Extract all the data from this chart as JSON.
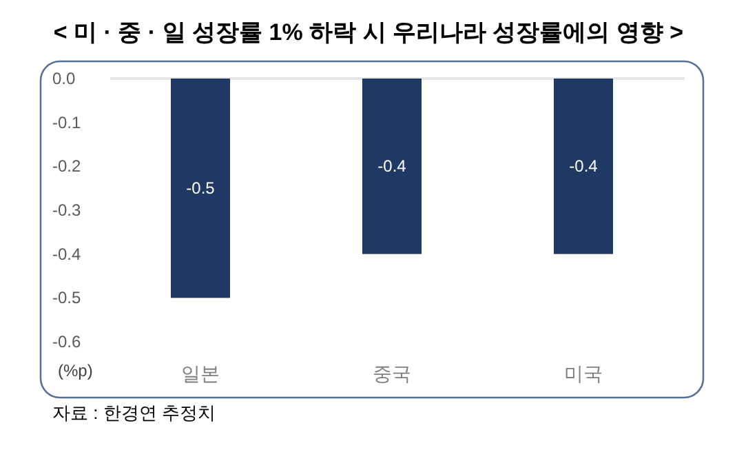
{
  "chart_data": {
    "type": "bar",
    "title": "< 미 · 중 · 일 성장률 1% 하락 시 우리나라 성장률에의 영향 >",
    "ylabel": "(%p)",
    "categories": [
      "일본",
      "중국",
      "미국"
    ],
    "values": [
      -0.5,
      -0.4,
      -0.4
    ],
    "color": "#203864",
    "data_labels": true,
    "ylim": [
      -0.6,
      0
    ],
    "yticks": [
      {
        "value": 0,
        "label": "0.0"
      },
      {
        "value": -0.1,
        "label": "-0.1"
      },
      {
        "value": -0.2,
        "label": "-0.2"
      },
      {
        "value": -0.3,
        "label": "-0.3"
      },
      {
        "value": -0.4,
        "label": "-0.4"
      },
      {
        "value": -0.5,
        "label": "-0.5"
      },
      {
        "value": -0.6,
        "label": "-0.6"
      }
    ],
    "grid": false,
    "annotations": [
      "자료 : 한경연 추정치"
    ]
  }
}
